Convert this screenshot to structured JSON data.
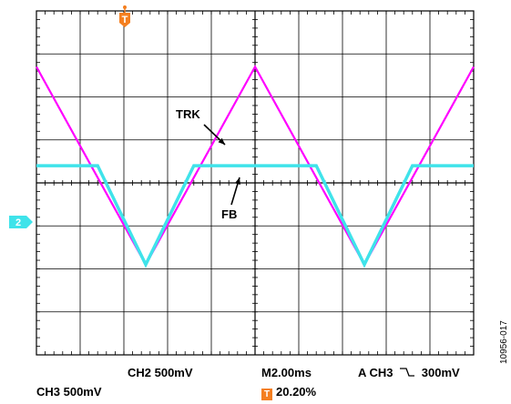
{
  "chart_data": {
    "type": "line",
    "title": "",
    "grid": true,
    "grid_divisions": {
      "x": 10,
      "y": 8
    },
    "x_unit": "ms",
    "xlim": [
      -4,
      16
    ],
    "ylim": [
      -2,
      2
    ],
    "series": [
      {
        "name": "TRK",
        "color": "#ff00ff",
        "x": [
          -4,
          1,
          6,
          11,
          16
        ],
        "y": [
          1.35,
          -0.95,
          1.35,
          -0.95,
          1.35
        ]
      },
      {
        "name": "FB",
        "color": "#3fe3ea",
        "x": [
          -4,
          -1.2,
          1,
          3.2,
          8.8,
          11,
          13.2,
          16
        ],
        "y": [
          0.2,
          0.2,
          -0.95,
          0.2,
          0.2,
          -0.95,
          0.2,
          0.2
        ]
      }
    ],
    "annotations": [
      {
        "text": "TRK",
        "series": "TRK"
      },
      {
        "text": "FB",
        "series": "FB"
      }
    ],
    "trigger_marker": {
      "label": "T",
      "color": "#f47f20"
    },
    "ch2_marker": {
      "label": "2",
      "color": "#3fe3ea"
    }
  },
  "readout": {
    "ch2": "CH2  500mV",
    "ch3": "CH3  500mV",
    "timebase": "M2.00ms",
    "trigger_source": "A  CH3",
    "trigger_level": "300mV",
    "trigger_badge": "T",
    "trigger_pos": "20.20%"
  },
  "figure_id": "10956-017"
}
